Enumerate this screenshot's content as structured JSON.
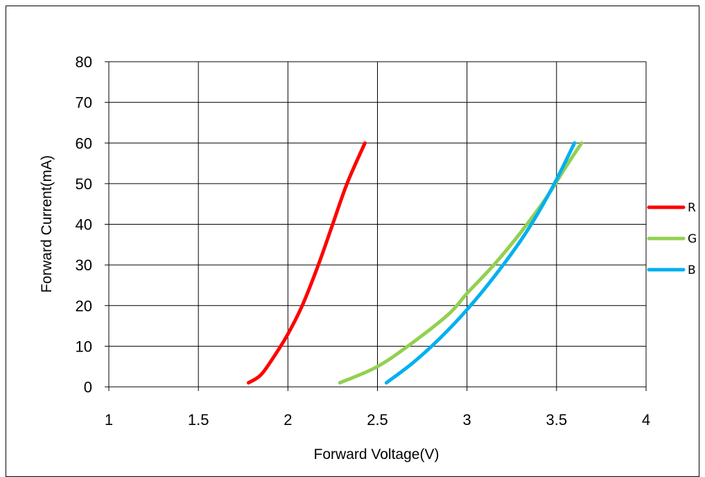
{
  "chart_data": {
    "type": "line",
    "xlabel": "Forward Voltage(V)",
    "ylabel": "Forward Current(mA)",
    "xlim": [
      1,
      4
    ],
    "ylim": [
      0,
      80
    ],
    "x_ticks": [
      "1",
      "1.5",
      "2",
      "2.5",
      "3",
      "3.5",
      "4"
    ],
    "y_ticks": [
      "0",
      "10",
      "20",
      "30",
      "40",
      "50",
      "60",
      "70",
      "80"
    ],
    "grid": true,
    "legend_position": "right",
    "series": [
      {
        "name": "R",
        "color": "#ff0000",
        "points": [
          [
            1.78,
            1
          ],
          [
            1.85,
            3
          ],
          [
            1.93,
            8
          ],
          [
            2.0,
            13
          ],
          [
            2.08,
            20
          ],
          [
            2.17,
            30
          ],
          [
            2.25,
            40
          ],
          [
            2.33,
            50
          ],
          [
            2.43,
            60
          ]
        ]
      },
      {
        "name": "G",
        "color": "#92d050",
        "points": [
          [
            2.29,
            1
          ],
          [
            2.5,
            5
          ],
          [
            2.7,
            11
          ],
          [
            2.9,
            18
          ],
          [
            3.0,
            23
          ],
          [
            3.15,
            30
          ],
          [
            3.3,
            38
          ],
          [
            3.45,
            47
          ],
          [
            3.55,
            54
          ],
          [
            3.64,
            60
          ]
        ]
      },
      {
        "name": "B",
        "color": "#00b0f0",
        "points": [
          [
            2.55,
            1
          ],
          [
            2.7,
            6
          ],
          [
            2.85,
            12
          ],
          [
            3.0,
            19
          ],
          [
            3.15,
            27
          ],
          [
            3.3,
            36
          ],
          [
            3.4,
            43
          ],
          [
            3.5,
            51
          ],
          [
            3.6,
            60
          ]
        ]
      }
    ]
  }
}
